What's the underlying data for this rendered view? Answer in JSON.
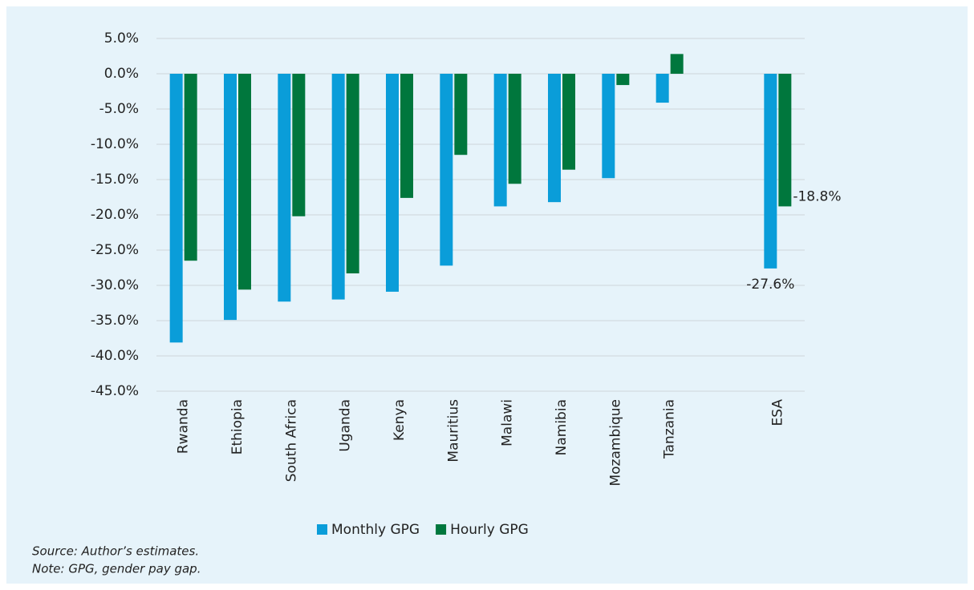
{
  "chart_data": {
    "type": "bar",
    "categories": [
      "Rwanda",
      "Ethiopia",
      "South Africa",
      "Uganda",
      "Kenya",
      "Mauritius",
      "Malawi",
      "Namibia",
      "Mozambique",
      "Tanzania",
      null,
      "ESA"
    ],
    "series": [
      {
        "name": "Monthly GPG",
        "color": "#0a9dd9",
        "values": [
          -38.1,
          -34.9,
          -32.3,
          -32.0,
          -30.9,
          -27.2,
          -18.8,
          -18.2,
          -14.8,
          -4.1,
          null,
          -27.6
        ],
        "value_labels": [
          null,
          null,
          null,
          null,
          null,
          null,
          null,
          null,
          null,
          null,
          null,
          "-27.6%"
        ]
      },
      {
        "name": "Hourly GPG",
        "color": "#00773d",
        "values": [
          -26.5,
          -30.6,
          -20.2,
          -28.3,
          -17.6,
          -11.5,
          -15.6,
          -13.6,
          -1.6,
          2.8,
          null,
          -18.8
        ],
        "value_labels": [
          null,
          null,
          null,
          null,
          null,
          null,
          null,
          null,
          null,
          null,
          null,
          "-18.8%"
        ]
      }
    ],
    "ylim": [
      -45,
      5
    ],
    "yticks": [
      {
        "value": 5,
        "label": "5.0%"
      },
      {
        "value": 0,
        "label": "0.0%"
      },
      {
        "value": -5,
        "label": "-5.0%"
      },
      {
        "value": -10,
        "label": "-10.0%"
      },
      {
        "value": -15,
        "label": "-15.0%"
      },
      {
        "value": -20,
        "label": "-20.0%"
      },
      {
        "value": -25,
        "label": "-25.0%"
      },
      {
        "value": -30,
        "label": "-30.0%"
      },
      {
        "value": -35,
        "label": "-35.0%"
      },
      {
        "value": -40,
        "label": "-40.0%"
      },
      {
        "value": -45,
        "label": "-45.0%"
      }
    ],
    "grid": true,
    "legend": "bottom",
    "notes": [
      "Source: Author’s estimates.",
      "Note: GPG, gender pay gap."
    ]
  }
}
